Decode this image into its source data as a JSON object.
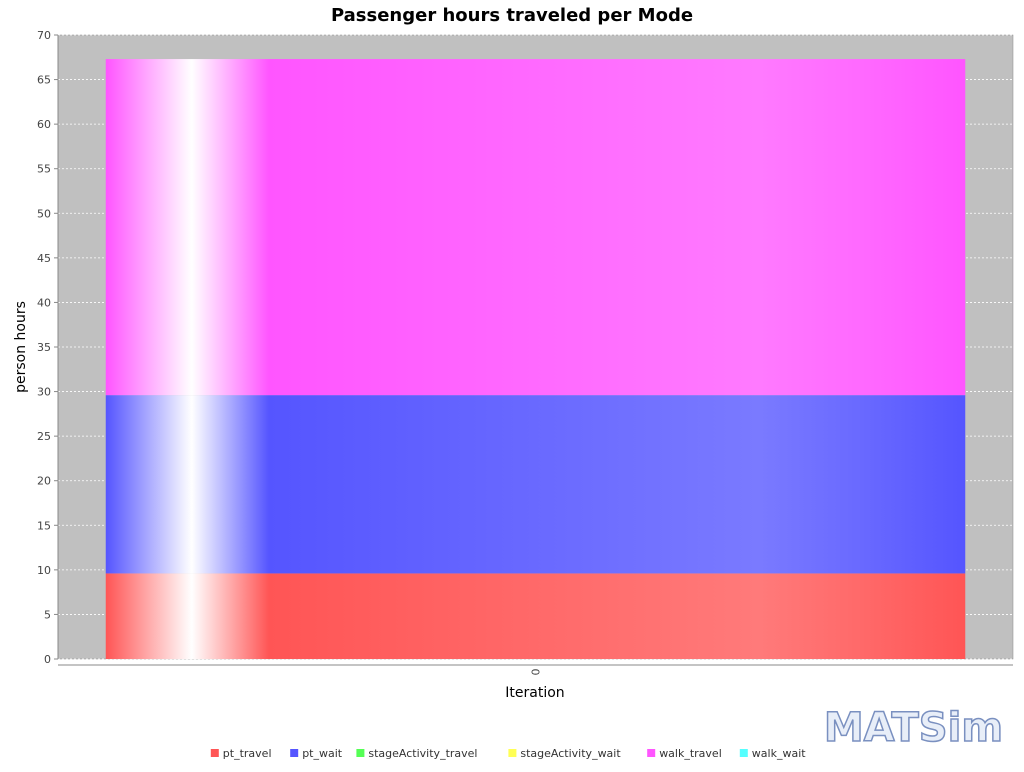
{
  "chart_data": {
    "type": "bar",
    "stacked": true,
    "title": "Passenger hours traveled per Mode",
    "xlabel": "Iteration",
    "ylabel": "person hours",
    "categories": [
      "0"
    ],
    "ylim": [
      0,
      70
    ],
    "yticks": [
      0,
      5,
      10,
      15,
      20,
      25,
      30,
      35,
      40,
      45,
      50,
      55,
      60,
      65,
      70
    ],
    "grid": true,
    "legend_position": "bottom",
    "series": [
      {
        "name": "pt_travel",
        "color": "#ff5555",
        "values": [
          9.6
        ]
      },
      {
        "name": "pt_wait",
        "color": "#5555ff",
        "values": [
          20.0
        ]
      },
      {
        "name": "stageActivity_travel",
        "color": "#55ff55",
        "values": [
          0
        ]
      },
      {
        "name": "stageActivity_wait",
        "color": "#ffff55",
        "values": [
          0
        ]
      },
      {
        "name": "walk_travel",
        "color": "#ff55ff",
        "values": [
          37.7
        ]
      },
      {
        "name": "walk_wait",
        "color": "#55ffff",
        "values": [
          0
        ]
      }
    ]
  },
  "logo": {
    "text": "MATSim"
  }
}
